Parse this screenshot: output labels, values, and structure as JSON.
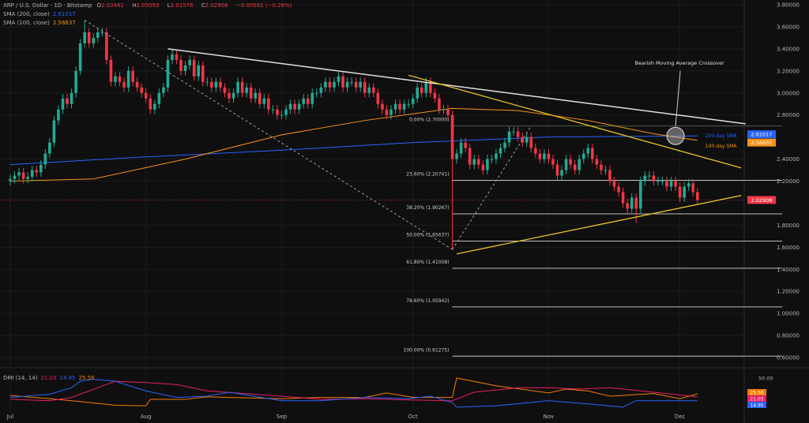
{
  "header": {
    "symbol": "XRP / U.S. Dollar · 1D · Bitstamp",
    "o_label": "O",
    "open": "2.03481",
    "h_label": "H",
    "high": "2.05093",
    "l_label": "L",
    "low": "2.01576",
    "c_label": "C",
    "close": "2.02908",
    "change": "−0.00561 (−0.28%)"
  },
  "indicators": [
    {
      "label": "SMA (200, close)",
      "value": "2.61017",
      "color": "#2962ff"
    },
    {
      "label": "SMA (100, close)",
      "value": "2.56637",
      "color": "#f7931a"
    }
  ],
  "dmi_legend": {
    "label": "DMI (14, 14)",
    "minus_di": "21.03",
    "plus_di": "14.95",
    "adx": "25.56"
  },
  "colors": {
    "up": "#22ab94",
    "down": "#f23645",
    "background": "#0f0f0f",
    "sma200": "#2962ff",
    "sma100": "#f7931a",
    "trend_white": "#e0e0e0",
    "trend_yellow": "#e6c229",
    "adx": "#f57c00",
    "plus_di": "#2962ff",
    "minus_di": "#e91e63"
  },
  "chart_data": [
    {
      "type": "candlestick",
      "title": "XRP / U.S. Dollar · 1D · Bitstamp",
      "y_ticks": [
        "3.80000",
        "3.60000",
        "3.40000",
        "3.20000",
        "3.00000",
        "2.80000",
        "2.40000",
        "2.20000",
        "1.80000",
        "1.60000",
        "1.40000",
        "1.20000",
        "1.00000",
        "0.80000",
        "0.60000"
      ],
      "ylim": [
        0.6,
        3.8
      ],
      "x_ticks": [
        "Jul",
        "Aug",
        "Sep",
        "Oct",
        "Nov",
        "Dec"
      ],
      "closes_by_month": {
        "Jul": [
          2.22,
          2.25,
          2.28,
          2.22,
          2.24,
          2.3,
          2.28,
          2.35,
          2.45,
          2.55,
          2.75,
          2.85,
          2.95,
          2.9,
          3.0,
          3.2,
          3.45,
          3.55,
          3.45,
          3.5,
          3.55,
          3.55,
          3.3,
          3.1,
          3.15,
          3.1,
          3.05,
          3.2,
          3.1,
          3.05,
          3.0
        ],
        "Aug": [
          2.95,
          2.85,
          2.9,
          3.0,
          3.05,
          3.3,
          3.35,
          3.3,
          3.2,
          3.25,
          3.3,
          3.15,
          3.25,
          3.1,
          3.1,
          3.05,
          3.1,
          3.05,
          3.0,
          2.95,
          3.0,
          3.1,
          3.0,
          3.05,
          2.95,
          3.0,
          2.9,
          2.95,
          2.85,
          2.85,
          2.8
        ],
        "Sep": [
          2.8,
          2.85,
          2.9,
          2.85,
          2.9,
          2.95,
          2.9,
          3.0,
          3.0,
          3.05,
          3.1,
          3.05,
          3.1,
          3.15,
          3.05,
          3.1,
          3.1,
          3.05,
          3.1,
          3.0,
          3.05,
          3.0,
          2.9,
          2.85,
          2.8,
          2.85,
          2.9,
          2.85,
          2.9,
          2.9
        ],
        "Oct": [
          2.95,
          3.05,
          3.0,
          3.1,
          3.0,
          2.95,
          2.85,
          2.85,
          2.8,
          2.4,
          2.45,
          2.55,
          2.5,
          2.35,
          2.4,
          2.35,
          2.3,
          2.4,
          2.4,
          2.45,
          2.5,
          2.55,
          2.65,
          2.65,
          2.6,
          2.55,
          2.6,
          2.5,
          2.45,
          2.4,
          2.45
        ],
        "Nov": [
          2.4,
          2.35,
          2.25,
          2.3,
          2.4,
          2.35,
          2.3,
          2.4,
          2.45,
          2.5,
          2.4,
          2.35,
          2.3,
          2.3,
          2.2,
          2.15,
          2.1,
          2.0,
          1.95,
          2.05,
          1.95,
          2.2,
          2.25,
          2.25,
          2.2,
          2.2,
          2.2,
          2.15,
          2.2,
          2.15
        ],
        "Dec": [
          2.05,
          2.15,
          2.18,
          2.1,
          2.02908
        ]
      },
      "notable_wicks": [
        {
          "date": "Jul 18",
          "high": 3.66
        },
        {
          "date": "Oct 10",
          "low": 1.58
        },
        {
          "date": "Nov 21",
          "low": 1.82
        }
      ],
      "last_price": "2.02908",
      "sma200": {
        "label": "200-day SMA",
        "value": "2.61017",
        "points": [
          [
            "Jul 1",
            2.35
          ],
          [
            "Aug 1",
            2.42
          ],
          [
            "Sep 1",
            2.48
          ],
          [
            "Oct 1",
            2.55
          ],
          [
            "Nov 1",
            2.6
          ],
          [
            "Dec 5",
            2.61
          ]
        ]
      },
      "sma100": {
        "label": "100-day SMA",
        "value": "2.56637",
        "points": [
          [
            "Jul 1",
            2.2
          ],
          [
            "Jul 20",
            2.22
          ],
          [
            "Aug 10",
            2.4
          ],
          [
            "Sep 1",
            2.62
          ],
          [
            "Sep 20",
            2.75
          ],
          [
            "Oct 10",
            2.86
          ],
          [
            "Oct 25",
            2.84
          ],
          [
            "Nov 10",
            2.75
          ],
          [
            "Nov 25",
            2.63
          ],
          [
            "Dec 5",
            2.57
          ]
        ]
      },
      "trendlines": [
        {
          "name": "upper-resistance",
          "color": "white",
          "from": [
            "Aug 6",
            3.4
          ],
          "to": [
            "Dec 16",
            2.72
          ]
        },
        {
          "name": "triangle-upper",
          "color": "yellow",
          "from": [
            "Sep 30",
            3.16
          ],
          "to": [
            "Dec 15",
            2.32
          ]
        },
        {
          "name": "triangle-lower",
          "color": "yellow",
          "from": [
            "Oct 11",
            1.54
          ],
          "to": [
            "Dec 15",
            2.07
          ]
        },
        {
          "name": "fib-swing-down",
          "color": "gray-dashed",
          "from": [
            "Jul 18",
            3.66
          ],
          "to": [
            "Oct 10",
            1.58
          ]
        },
        {
          "name": "fib-swing-up",
          "color": "gray-dashed",
          "from": [
            "Oct 10",
            1.58
          ],
          "to": [
            "Oct 28",
            2.7
          ]
        }
      ],
      "fib_levels": [
        {
          "label": "0.00% (2.70000)",
          "price": 2.7
        },
        {
          "label": "23.60% (2.20741)",
          "price": 2.20741
        },
        {
          "label": "38.20% (1.90267)",
          "price": 1.90267
        },
        {
          "label": "50.00% (1.65637)",
          "price": 1.65637
        },
        {
          "label": "61.80% (1.41008)",
          "price": 1.41008
        },
        {
          "label": "78.60% (1.05942)",
          "price": 1.05942
        },
        {
          "label": "100.00% (0.61275)",
          "price": 0.61275
        }
      ],
      "annotation": {
        "text": "Bearish Moving Average Crossover",
        "target": [
          "Nov 30",
          2.61
        ]
      }
    },
    {
      "type": "line",
      "title": "DMI (14, 14)",
      "y_ticks": [
        "50.00"
      ],
      "ylim": [
        0,
        50
      ],
      "series": [
        {
          "name": "ADX",
          "value": "25.56",
          "points": [
            [
              "Jul 1",
              23
            ],
            [
              "Jul 10",
              18
            ],
            [
              "Jul 15",
              15
            ],
            [
              "Jul 25",
              8
            ],
            [
              "Aug 1",
              7
            ],
            [
              "Aug 2",
              17
            ],
            [
              "Aug 10",
              17
            ],
            [
              "Aug 15",
              21
            ],
            [
              "Aug 20",
              20
            ],
            [
              "Sep 1",
              18
            ],
            [
              "Sep 10",
              20
            ],
            [
              "Sep 20",
              20
            ],
            [
              "Sep 25",
              27
            ],
            [
              "Oct 1",
              20
            ],
            [
              "Oct 10",
              20
            ],
            [
              "Oct 11",
              50
            ],
            [
              "Oct 20",
              38
            ],
            [
              "Nov 1",
              27
            ],
            [
              "Nov 5",
              33
            ],
            [
              "Nov 10",
              30
            ],
            [
              "Nov 15",
              22
            ],
            [
              "Nov 25",
              26
            ],
            [
              "Dec 1",
              18
            ],
            [
              "Dec 5",
              25.56
            ]
          ]
        },
        {
          "name": "-DI",
          "value": "21.03",
          "points": [
            [
              "Jul 1",
              17
            ],
            [
              "Jul 10",
              15
            ],
            [
              "Jul 15",
              20
            ],
            [
              "Jul 25",
              45
            ],
            [
              "Aug 1",
              43
            ],
            [
              "Aug 8",
              40
            ],
            [
              "Aug 15",
              30
            ],
            [
              "Sep 1",
              22
            ],
            [
              "Sep 10",
              17
            ],
            [
              "Sep 20",
              18
            ],
            [
              "Oct 1",
              16
            ],
            [
              "Oct 10",
              15
            ],
            [
              "Oct 15",
              28
            ],
            [
              "Oct 25",
              35
            ],
            [
              "Nov 1",
              35
            ],
            [
              "Nov 8",
              33
            ],
            [
              "Nov 15",
              35
            ],
            [
              "Nov 25",
              28
            ],
            [
              "Dec 5",
              21.03
            ]
          ]
        },
        {
          "name": "+DI",
          "value": "14.95",
          "points": [
            [
              "Jul 1",
              20
            ],
            [
              "Jul 10",
              25
            ],
            [
              "Jul 15",
              35
            ],
            [
              "Jul 17",
              45
            ],
            [
              "Jul 20",
              48
            ],
            [
              "Jul 25",
              45
            ],
            [
              "Aug 1",
              30
            ],
            [
              "Aug 8",
              20
            ],
            [
              "Aug 15",
              22
            ],
            [
              "Aug 20",
              28
            ],
            [
              "Sep 1",
              15
            ],
            [
              "Sep 10",
              15
            ],
            [
              "Sep 20",
              20
            ],
            [
              "Sep 30",
              18
            ],
            [
              "Oct 5",
              22
            ],
            [
              "Oct 10",
              12
            ],
            [
              "Oct 11",
              5
            ],
            [
              "Oct 20",
              7
            ],
            [
              "Nov 1",
              15
            ],
            [
              "Nov 10",
              10
            ],
            [
              "Nov 18",
              5
            ],
            [
              "Nov 21",
              15
            ],
            [
              "Nov 25",
              15
            ],
            [
              "Dec 5",
              14.95
            ]
          ]
        }
      ]
    }
  ]
}
